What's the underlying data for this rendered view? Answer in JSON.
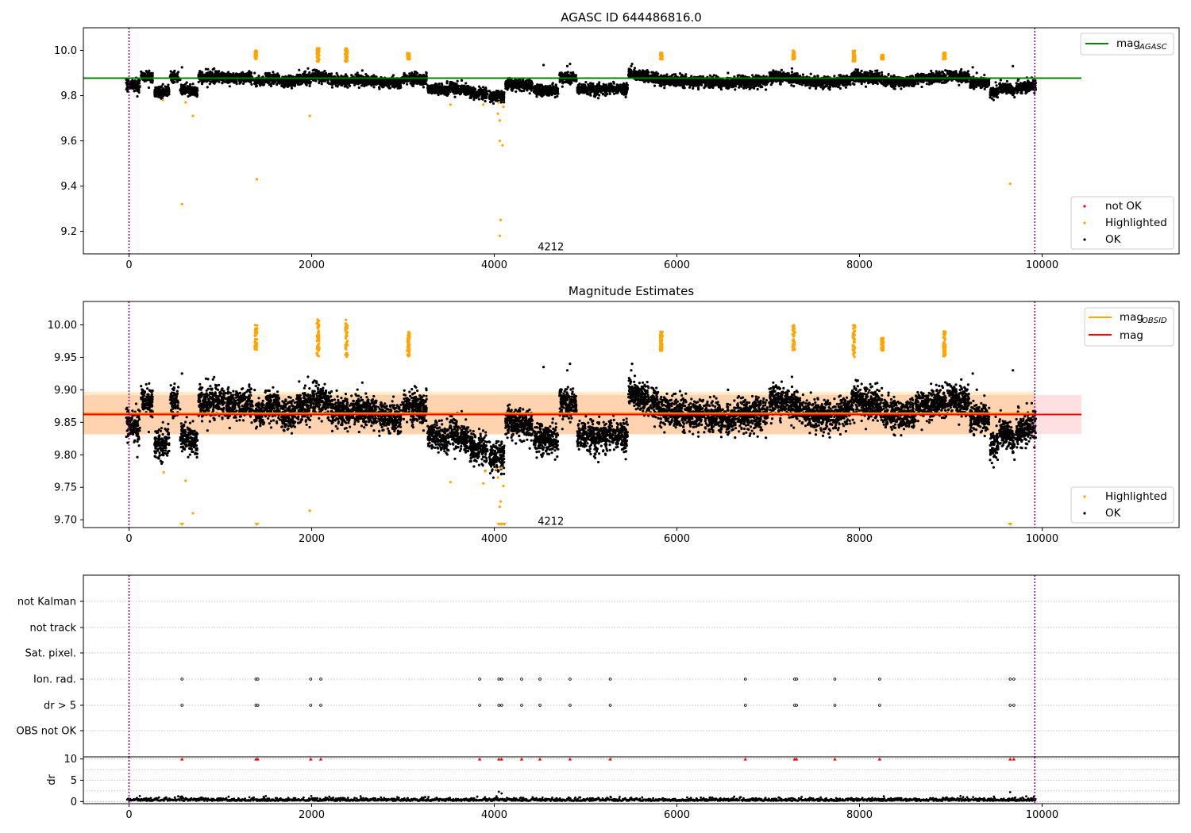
{
  "chart_data": [
    {
      "type": "scatter",
      "title": "AGASC ID 644486816.0",
      "xlim": [
        -500,
        11500
      ],
      "ylim": [
        9.1,
        10.1
      ],
      "xticks": [
        "0",
        "2000",
        "4000",
        "6000",
        "8000",
        "10000"
      ],
      "yticks": [
        "9.2",
        "9.4",
        "9.6",
        "9.8",
        "10.0"
      ],
      "xtick_values": [
        0,
        2000,
        4000,
        6000,
        8000,
        10000
      ],
      "ytick_values": [
        9.2,
        9.4,
        9.6,
        9.8,
        10.0
      ],
      "vlines": [
        0,
        9920
      ],
      "annotation": {
        "text": "4212",
        "x": 4950,
        "y": 9.13
      },
      "lines": [
        {
          "name": "mag_AGASC",
          "label_main": "mag",
          "label_sub": "AGASC",
          "y": 9.877,
          "x": [
            -500,
            10430
          ],
          "color": "#008000"
        }
      ],
      "series": [
        {
          "name": "not OK",
          "color": "#ff0000",
          "marker": "dot",
          "values": []
        },
        {
          "name": "Highlighted",
          "color": "#ffa500",
          "marker": "dot"
        },
        {
          "name": "OK",
          "color": "#000000",
          "marker": "dot"
        }
      ],
      "highlight_clusters": [
        {
          "x": 1390,
          "y": [
            9.96,
            10.0
          ]
        },
        {
          "x": 2070,
          "y": [
            9.95,
            10.01
          ]
        },
        {
          "x": 2380,
          "y": [
            9.95,
            10.01
          ]
        },
        {
          "x": 3060,
          "y": [
            9.96,
            9.99
          ]
        },
        {
          "x": 5830,
          "y": [
            9.96,
            9.99
          ]
        },
        {
          "x": 7280,
          "y": [
            9.96,
            10.0
          ]
        },
        {
          "x": 7940,
          "y": [
            9.95,
            10.0
          ]
        },
        {
          "x": 8250,
          "y": [
            9.96,
            9.98
          ]
        },
        {
          "x": 8930,
          "y": [
            9.96,
            9.99
          ]
        }
      ],
      "highlight_points": [
        {
          "x": 580,
          "y": 9.32
        },
        {
          "x": 1400,
          "y": 9.43
        },
        {
          "x": 1980,
          "y": 9.71
        },
        {
          "x": 700,
          "y": 9.71
        },
        {
          "x": 620,
          "y": 9.77
        },
        {
          "x": 3520,
          "y": 9.76
        },
        {
          "x": 3880,
          "y": 9.76
        },
        {
          "x": 4050,
          "y": 9.77
        },
        {
          "x": 4060,
          "y": 9.69
        },
        {
          "x": 4060,
          "y": 9.6
        },
        {
          "x": 4090,
          "y": 9.58
        },
        {
          "x": 4070,
          "y": 9.25
        },
        {
          "x": 4060,
          "y": 9.18
        },
        {
          "x": 9650,
          "y": 9.41
        },
        {
          "x": 370,
          "y": 9.78
        },
        {
          "x": 4040,
          "y": 9.72
        },
        {
          "x": 4100,
          "y": 9.75
        }
      ],
      "legend_locations": [
        "upper right",
        "lower right"
      ]
    },
    {
      "type": "scatter",
      "title": "Magnitude Estimates",
      "xlim": [
        -500,
        11500
      ],
      "ylim": [
        9.688,
        10.036
      ],
      "xticks": [
        "0",
        "2000",
        "4000",
        "6000",
        "8000",
        "10000"
      ],
      "yticks": [
        "9.70",
        "9.75",
        "9.80",
        "9.85",
        "9.90",
        "9.95",
        "10.00"
      ],
      "xtick_values": [
        0,
        2000,
        4000,
        6000,
        8000,
        10000
      ],
      "ytick_values": [
        9.7,
        9.75,
        9.8,
        9.85,
        9.9,
        9.95,
        10.0
      ],
      "vlines": [
        0,
        9920
      ],
      "annotation": {
        "text": "4212",
        "x": 4950,
        "y": 9.697
      },
      "lines": [
        {
          "name": "mag_OBSID",
          "label_main": "mag",
          "label_sub": "OBSID",
          "y": 9.864,
          "x": [
            -500,
            9920
          ],
          "band": [
            9.831,
            9.897
          ],
          "color": "#ffa500"
        },
        {
          "name": "mag",
          "label_main": "mag",
          "label_sub": "",
          "y": 9.862,
          "x": [
            -500,
            10430
          ],
          "band": [
            9.832,
            9.892
          ],
          "color": "#ff0000"
        }
      ],
      "series": [
        {
          "name": "Highlighted",
          "color": "#ffa500",
          "marker": "dot"
        },
        {
          "name": "OK",
          "color": "#000000",
          "marker": "dot"
        }
      ],
      "highlight_clusters": [
        {
          "x": 1390,
          "y": [
            9.96,
            10.0
          ]
        },
        {
          "x": 2070,
          "y": [
            9.95,
            10.01
          ]
        },
        {
          "x": 2380,
          "y": [
            9.95,
            10.01
          ]
        },
        {
          "x": 3060,
          "y": [
            9.95,
            9.99
          ]
        },
        {
          "x": 5830,
          "y": [
            9.96,
            9.99
          ]
        },
        {
          "x": 7280,
          "y": [
            9.96,
            10.0
          ]
        },
        {
          "x": 7940,
          "y": [
            9.95,
            10.0
          ]
        },
        {
          "x": 8250,
          "y": [
            9.96,
            9.98
          ]
        },
        {
          "x": 8930,
          "y": [
            9.95,
            9.99
          ]
        }
      ],
      "highlight_points": [
        {
          "x": 700,
          "y": 9.71
        },
        {
          "x": 620,
          "y": 9.76
        },
        {
          "x": 1980,
          "y": 9.714
        },
        {
          "x": 3520,
          "y": 9.758
        },
        {
          "x": 3880,
          "y": 9.756
        },
        {
          "x": 3900,
          "y": 9.775
        },
        {
          "x": 4040,
          "y": 9.765
        },
        {
          "x": 4070,
          "y": 9.728
        },
        {
          "x": 4100,
          "y": 9.752
        },
        {
          "x": 4060,
          "y": 9.72
        },
        {
          "x": 380,
          "y": 9.773
        },
        {
          "x": 4020,
          "y": 9.778
        },
        {
          "x": 4080,
          "y": 9.78
        }
      ],
      "offscale_markers": [
        580,
        1400,
        4050,
        4080,
        4110,
        9650
      ],
      "legend_locations": [
        "upper right",
        "lower right"
      ]
    },
    {
      "type": "scatter",
      "title": "",
      "xlim": [
        -500,
        11500
      ],
      "xticks": [
        "0",
        "2000",
        "4000",
        "6000",
        "8000",
        "10000"
      ],
      "xtick_values": [
        0,
        2000,
        4000,
        6000,
        8000,
        10000
      ],
      "flag_categories": [
        "not Kalman",
        "not track",
        "Sat. pixel.",
        "Ion. rad.",
        "dr > 5",
        "OBS not OK"
      ],
      "flag_points": {
        "Ion. rad.": [
          580,
          1390,
          1410,
          1990,
          2100,
          3840,
          4050,
          4080,
          4300,
          4500,
          4830,
          5270,
          6750,
          7290,
          7310,
          7730,
          8220,
          9650,
          9690
        ],
        "dr > 5": [
          580,
          1390,
          1410,
          1990,
          2100,
          3840,
          4050,
          4080,
          4300,
          4500,
          4830,
          5270,
          6750,
          7290,
          7310,
          7730,
          8220,
          9650,
          9690
        ]
      },
      "vlines": [
        0,
        9920
      ]
    },
    {
      "type": "scatter",
      "title": "",
      "ylabel": "dr",
      "xlim": [
        -500,
        11500
      ],
      "ylim": [
        -0.5,
        10.5
      ],
      "xticks": [
        "0",
        "2000",
        "4000",
        "6000",
        "8000",
        "10000"
      ],
      "yticks": [
        "0",
        "5",
        "10"
      ],
      "xtick_values": [
        0,
        2000,
        4000,
        6000,
        8000,
        10000
      ],
      "ytick_values": [
        0,
        5,
        10
      ],
      "clipped_markers_at_10": [
        580,
        1390,
        1410,
        1990,
        2100,
        3840,
        4050,
        4080,
        4300,
        4500,
        4830,
        5270,
        6750,
        7290,
        7310,
        7730,
        8220,
        9650,
        9690
      ],
      "vlines": [
        0,
        9920
      ]
    }
  ],
  "legends": {
    "top_upper": "mag",
    "top_upper_sub": "AGASC",
    "top_lower": [
      "not OK",
      "Highlighted",
      "OK"
    ],
    "mid_upper": [
      "mag",
      "mag"
    ],
    "mid_upper_sub": "OBSID",
    "mid_lower": [
      "Highlighted",
      "OK"
    ]
  },
  "colors": {
    "ok": "#000000",
    "highlighted": "#ffa500",
    "not_ok": "#ff0000",
    "agasc_line": "#008000",
    "obsid_line": "#ffa500",
    "mag_line": "#ff0000",
    "vline": "#800080",
    "grid": "#b0b0b0"
  }
}
